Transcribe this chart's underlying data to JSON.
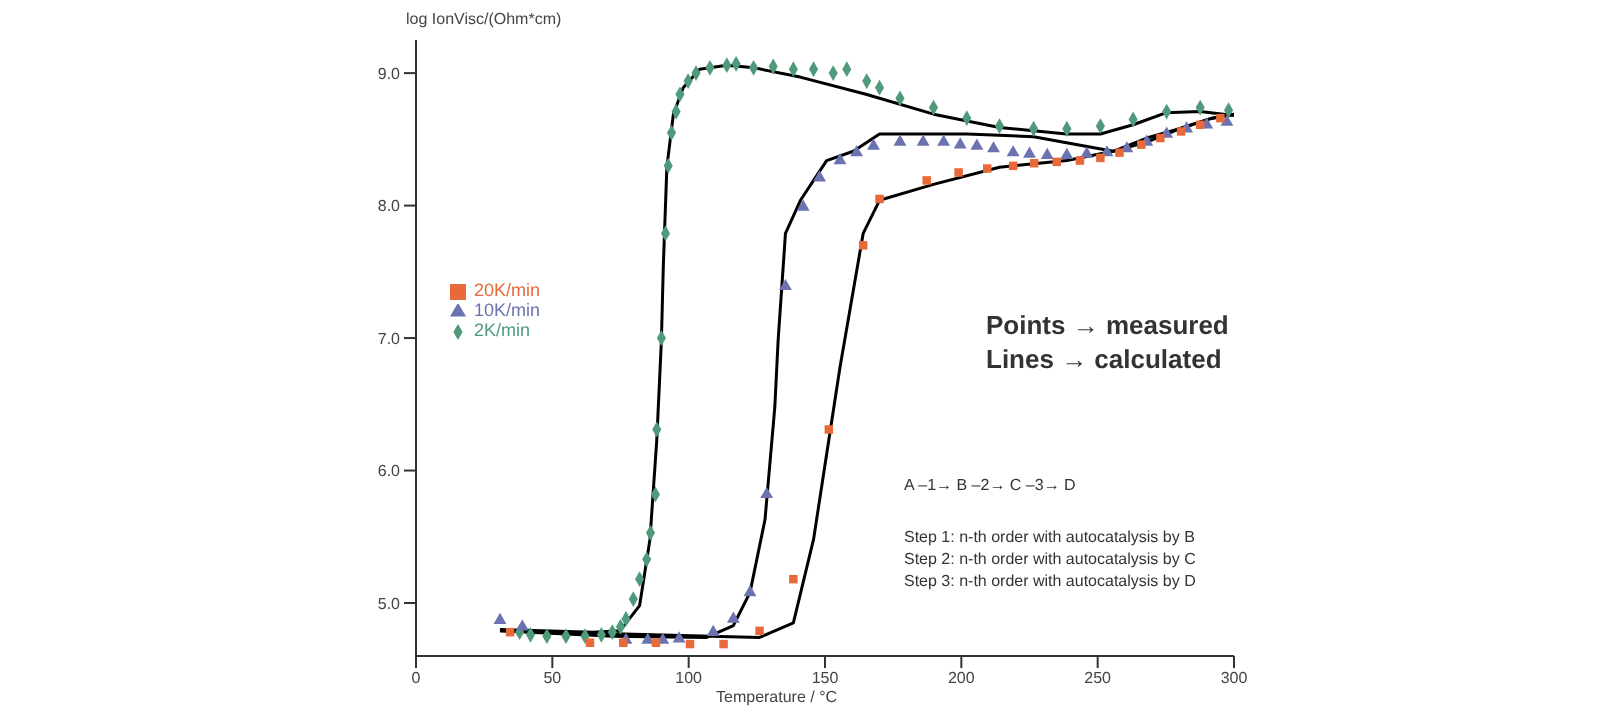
{
  "chart_data": {
    "type": "scatter",
    "xlabel": "Temperature / °C",
    "ylabel": "log IonVisc/(Ohm*cm)",
    "xlim": [
      0,
      300
    ],
    "xticks": [
      0,
      50,
      100,
      150,
      200,
      250,
      300
    ],
    "ylim": [
      4.6,
      9.25
    ],
    "yticks": [
      {
        "value": 5,
        "label": "5.0"
      },
      {
        "value": 6,
        "label": "6.0"
      },
      {
        "value": 7,
        "label": "7.0"
      },
      {
        "value": 8,
        "label": "8.0"
      },
      {
        "value": 9,
        "label": "9.0"
      }
    ],
    "grid": false,
    "legend": "left",
    "annotations": [
      "Points → measured",
      "Lines → calculated",
      "A –1→ B –2→ C –3→ D",
      "Step 1: n-th order with autocatalysis by B",
      "Step 2: n-th order with autocatalysis by C",
      "Step 3: n-th order with autocatalysis by D"
    ],
    "series": [
      {
        "name": "20K/min",
        "marker": "square",
        "color": "#e8693a",
        "x": [
          34.5,
          63.8,
          76,
          88,
          100.5,
          112.8,
          126,
          138.4,
          151.4,
          164,
          170,
          187.3,
          199,
          209.5,
          219,
          226.7,
          235,
          243.5,
          251,
          258,
          266,
          273,
          280.6,
          287.6,
          295
        ],
        "values": [
          4.78,
          4.7,
          4.7,
          4.7,
          4.69,
          4.69,
          4.79,
          5.18,
          6.31,
          7.7,
          8.05,
          8.19,
          8.25,
          8.28,
          8.3,
          8.32,
          8.33,
          8.34,
          8.36,
          8.4,
          8.46,
          8.51,
          8.56,
          8.61,
          8.66
        ]
      },
      {
        "name": "10K/min",
        "marker": "triangle",
        "color": "#6b72b0",
        "x": [
          30.8,
          39,
          77,
          85,
          90.5,
          96.5,
          109,
          116.4,
          122.5,
          128.6,
          135.5,
          142,
          148,
          155.5,
          161.6,
          167.8,
          177.5,
          186,
          193.5,
          199.6,
          205.7,
          211.8,
          219,
          225,
          231.5,
          238.7,
          246,
          253.4,
          260.7,
          268,
          275.3,
          282.6,
          290,
          297.4
        ],
        "values": [
          4.87,
          4.82,
          4.72,
          4.72,
          4.72,
          4.73,
          4.78,
          4.88,
          5.08,
          5.82,
          7.39,
          7.99,
          8.21,
          8.34,
          8.4,
          8.45,
          8.48,
          8.48,
          8.48,
          8.46,
          8.45,
          8.43,
          8.4,
          8.39,
          8.38,
          8.38,
          8.39,
          8.4,
          8.43,
          8.48,
          8.54,
          8.58,
          8.61,
          8.63
        ]
      },
      {
        "name": "2K/min",
        "marker": "diamond",
        "color": "#4f9a7a",
        "x": [
          38,
          42,
          48,
          55,
          62,
          68,
          72,
          75,
          77,
          79.7,
          82,
          84.6,
          86,
          87.8,
          88.3,
          90,
          91.5,
          92.5,
          93.7,
          95.4,
          96.8,
          99.8,
          102.7,
          107.8,
          114,
          117.4,
          123.8,
          131,
          138.4,
          145.8,
          153,
          158,
          165.3,
          170,
          177.5,
          189.8,
          202,
          214,
          226.5,
          238.7,
          251,
          263,
          275.3,
          287.6,
          298
        ],
        "values": [
          4.78,
          4.76,
          4.75,
          4.75,
          4.75,
          4.76,
          4.78,
          4.82,
          4.88,
          5.03,
          5.18,
          5.33,
          5.53,
          5.82,
          6.31,
          7.0,
          7.79,
          8.3,
          8.55,
          8.71,
          8.84,
          8.94,
          9.0,
          9.04,
          9.06,
          9.07,
          9.04,
          9.05,
          9.03,
          9.03,
          9.0,
          9.03,
          8.94,
          8.89,
          8.81,
          8.74,
          8.66,
          8.6,
          8.58,
          8.58,
          8.6,
          8.65,
          8.71,
          8.74,
          8.72
        ]
      },
      {
        "type": "line",
        "marker": "none",
        "color": "#000000",
        "x": [
          30.8,
          126,
          138.4,
          145.8,
          155.5,
          164,
          170,
          189.8,
          214,
          238.7,
          255.7,
          268,
          280,
          292,
          300
        ],
        "values": [
          4.79,
          4.74,
          4.85,
          5.48,
          6.78,
          7.79,
          8.04,
          8.16,
          8.29,
          8.34,
          8.41,
          8.51,
          8.58,
          8.66,
          8.69
        ]
      },
      {
        "type": "line",
        "marker": "none",
        "color": "#000000",
        "x": [
          30.8,
          72.4,
          106.6,
          116.4,
          122.5,
          128,
          131.6,
          132.8,
          135.5,
          141,
          150.6,
          160.4,
          170,
          202,
          226.5,
          255.7,
          268,
          280,
          292,
          300
        ],
        "values": [
          4.79,
          4.75,
          4.74,
          4.83,
          5.08,
          5.63,
          6.48,
          6.98,
          7.79,
          8.04,
          8.34,
          8.41,
          8.54,
          8.54,
          8.52,
          8.41,
          8.48,
          8.58,
          8.66,
          8.69
        ]
      },
      {
        "type": "line",
        "marker": "none",
        "color": "#000000",
        "x": [
          30.8,
          65,
          74.8,
          82,
          85.8,
          88.3,
          90,
          90.7,
          92,
          94.4,
          98,
          104,
          114,
          124,
          140.9,
          165,
          189.8,
          214,
          238.5,
          251,
          263,
          275,
          287.6,
          300
        ],
        "values": [
          4.8,
          4.78,
          4.79,
          4.98,
          5.48,
          6.23,
          6.98,
          7.54,
          8.29,
          8.69,
          8.89,
          9.03,
          9.06,
          9.04,
          8.97,
          8.84,
          8.69,
          8.59,
          8.54,
          8.54,
          8.61,
          8.7,
          8.71,
          8.68
        ]
      }
    ]
  }
}
